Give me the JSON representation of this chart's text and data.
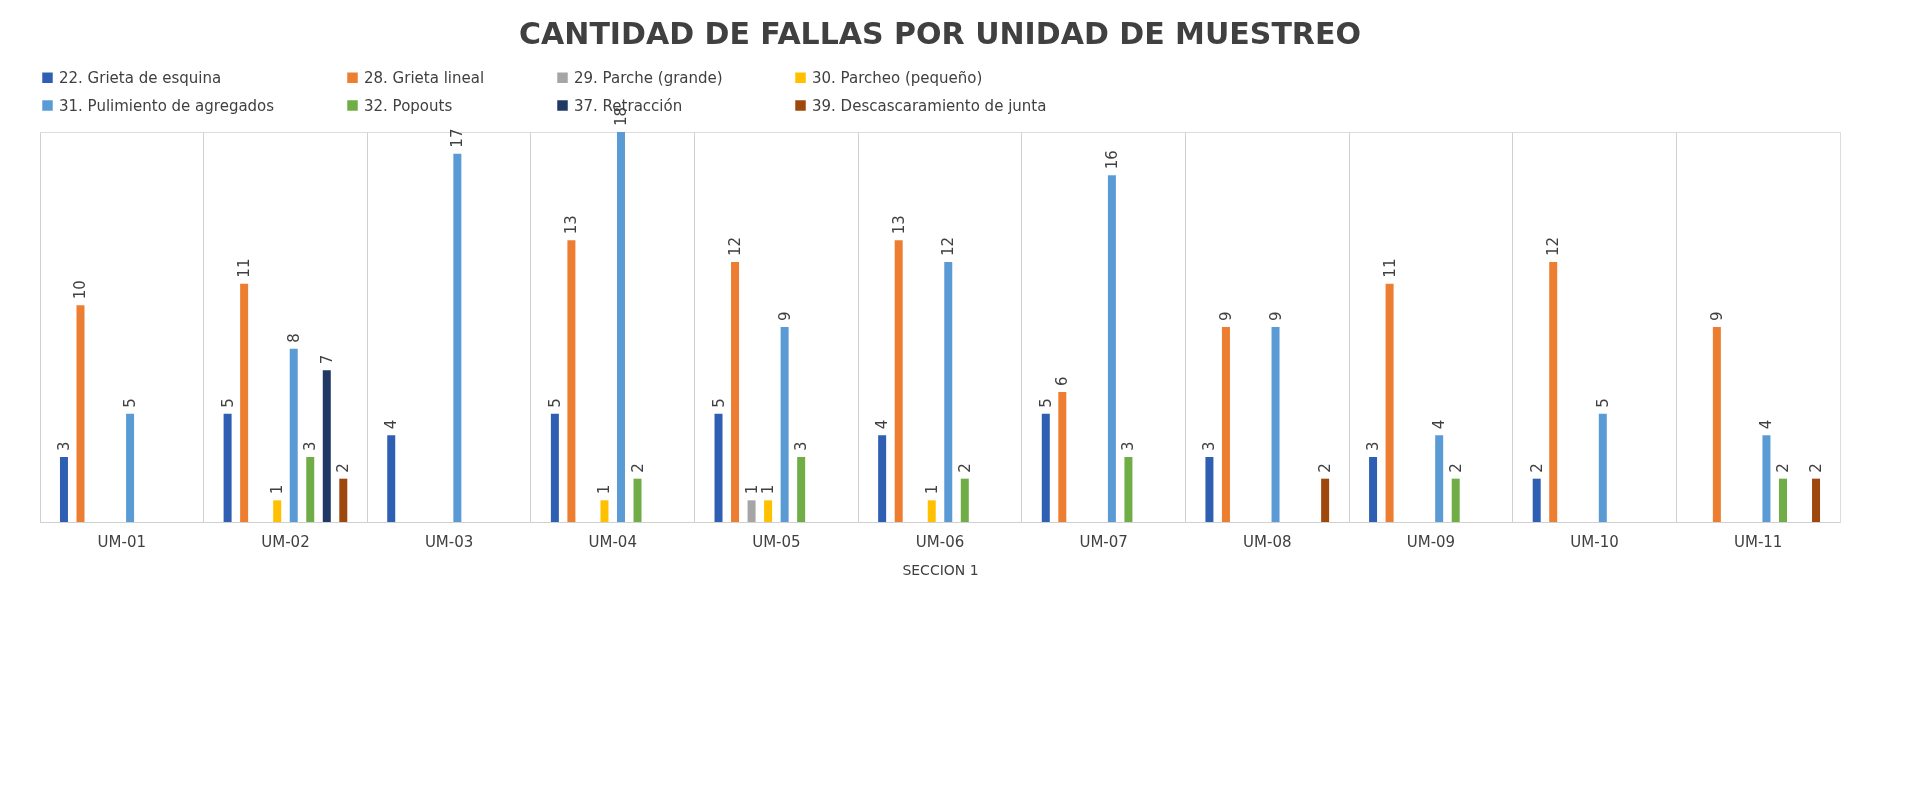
{
  "chart_data": {
    "type": "bar",
    "title": "CANTIDAD  DE FALLAS  POR  UNIDAD  DE  MUESTREO",
    "xlabel": "SECCION 1",
    "categories": [
      "UM-01",
      "UM-02",
      "UM-03",
      "UM-04",
      "UM-05",
      "UM-06",
      "UM-07",
      "UM-08",
      "UM-09",
      "UM-10",
      "UM-11"
    ],
    "series": [
      {
        "name": "22. Grieta de esquina",
        "color": "#2f5fb3",
        "values": [
          3,
          5,
          4,
          5,
          5,
          4,
          5,
          3,
          3,
          2,
          null
        ]
      },
      {
        "name": "28. Grieta lineal",
        "color": "#ed7d31",
        "values": [
          10,
          11,
          null,
          13,
          12,
          13,
          6,
          9,
          11,
          12,
          9
        ]
      },
      {
        "name": "29. Parche (grande)",
        "color": "#a5a5a5",
        "values": [
          null,
          null,
          null,
          null,
          1,
          null,
          null,
          null,
          null,
          null,
          null
        ]
      },
      {
        "name": "30. Parcheo (pequeño)",
        "color": "#ffc000",
        "values": [
          null,
          1,
          null,
          1,
          1,
          1,
          null,
          null,
          null,
          null,
          null
        ]
      },
      {
        "name": "31. Pulimiento de agregados",
        "color": "#5b9bd5",
        "values": [
          5,
          8,
          17,
          18,
          9,
          12,
          16,
          9,
          4,
          5,
          4
        ]
      },
      {
        "name": "32. Popouts",
        "color": "#70ad47",
        "values": [
          null,
          3,
          null,
          2,
          3,
          2,
          3,
          null,
          2,
          null,
          2
        ]
      },
      {
        "name": "37. Retracción",
        "color": "#1f3864",
        "values": [
          null,
          7,
          null,
          null,
          null,
          null,
          null,
          null,
          null,
          null,
          null
        ]
      },
      {
        "name": "39. Descascaramiento de junta",
        "color": "#9e480e",
        "values": [
          null,
          2,
          null,
          null,
          null,
          null,
          null,
          2,
          null,
          null,
          2
        ]
      }
    ],
    "data_labels": true,
    "grid": "x",
    "legend": "top",
    "tick_labels": "x"
  }
}
